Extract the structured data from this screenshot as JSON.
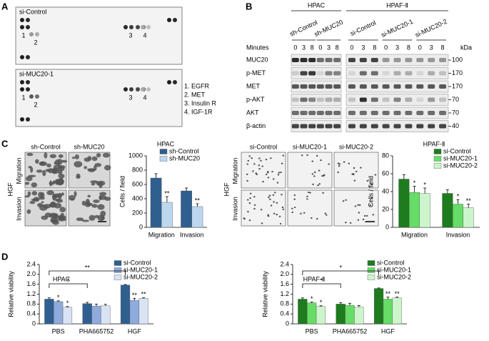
{
  "panel_labels": [
    "A",
    "B",
    "C",
    "D"
  ],
  "array": {
    "blots": [
      {
        "label": "si-Control",
        "spots": [
          {
            "text": "1",
            "color": "#000000"
          },
          {
            "text": "2",
            "color": "#e0201b"
          },
          {
            "text": "3",
            "color": "#000000"
          },
          {
            "text": "4",
            "color": "#000000"
          }
        ]
      },
      {
        "label": "si-MUC20-1",
        "spots": [
          {
            "text": "1",
            "color": "#000000"
          },
          {
            "text": "2",
            "color": "#e0201b"
          },
          {
            "text": "3",
            "color": "#000000"
          },
          {
            "text": "4",
            "color": "#000000"
          }
        ]
      }
    ],
    "legend": [
      {
        "text": "1. EGFR",
        "color": "#000000"
      },
      {
        "text": "2. MET",
        "color": "#e0201b"
      },
      {
        "text": "3. Insulin R",
        "color": "#000000"
      },
      {
        "text": "4. IGF-1R",
        "color": "#000000"
      }
    ]
  },
  "western": {
    "cell_lines": [
      {
        "name": "HPAC",
        "groups": [
          "sh-Control",
          "sh-MUC20"
        ]
      },
      {
        "name": "HPAF-Ⅱ",
        "groups": [
          "si-Control",
          "si-MUC20-1",
          "si-MUC20-2"
        ]
      }
    ],
    "time_label": "Minutes",
    "times": [
      0,
      3,
      8
    ],
    "unit_label": "kDa",
    "rows": [
      {
        "protein": "MUC20",
        "kda": 100
      },
      {
        "protein": "p-MET",
        "kda": 170
      },
      {
        "protein": "MET",
        "kda": 170
      },
      {
        "protein": "p-AKT",
        "kda": 70
      },
      {
        "protein": "AKT",
        "kda": 70
      },
      {
        "protein": "β-actin",
        "kda": 40
      }
    ]
  },
  "microscopy": [
    {
      "treatment": "HGF",
      "groups": [
        "sh-Control",
        "sh-MUC20"
      ],
      "assays": [
        "Migration",
        "Invasion"
      ]
    },
    {
      "treatment": "HGF",
      "groups": [
        "si-Control",
        "si-MUC20-1",
        "si-MUC20-2"
      ],
      "assays": [
        "Migration",
        "Invasion"
      ]
    }
  ],
  "chart_data": [
    {
      "type": "bar",
      "title": "HPAC",
      "ylabel": "Cells / field",
      "categories": [
        "Migration",
        "Invasion"
      ],
      "series": [
        {
          "name": "sh-Control",
          "color": "#2f5f8f",
          "values": [
            690,
            510
          ],
          "errors": [
            60,
            40
          ],
          "significance": [
            null,
            null
          ]
        },
        {
          "name": "sh-MUC20",
          "color": "#bdd7ee",
          "values": [
            350,
            290
          ],
          "errors": [
            80,
            40
          ],
          "significance": [
            "**",
            "**"
          ]
        }
      ],
      "ylim": [
        0,
        1000
      ],
      "yticks": [
        0,
        200,
        400,
        600,
        800,
        1000
      ],
      "brackets": []
    },
    {
      "type": "bar",
      "title": "HPAF-Ⅱ",
      "ylabel": "Cells / field",
      "categories": [
        "Migration",
        "Invasion"
      ],
      "series": [
        {
          "name": "si-Control",
          "color": "#1e7b1e",
          "values": [
            54,
            38
          ],
          "errors": [
            5,
            4
          ],
          "significance": [
            null,
            null
          ]
        },
        {
          "name": "si-MUC20-1",
          "color": "#66dd66",
          "values": [
            39,
            26
          ],
          "errors": [
            7,
            5
          ],
          "significance": [
            "*",
            "*"
          ]
        },
        {
          "name": "si-MUC20-2",
          "color": "#ccf5cc",
          "values": [
            38,
            22
          ],
          "errors": [
            6,
            4
          ],
          "significance": [
            "*",
            "**"
          ]
        }
      ],
      "ylim": [
        0,
        80
      ],
      "yticks": [
        0,
        20,
        40,
        60,
        80
      ],
      "brackets": []
    },
    {
      "type": "bar",
      "title": "HPAC",
      "ylabel": "Relative viability",
      "categories": [
        "PBS",
        "PHA665752",
        "HGF"
      ],
      "series": [
        {
          "name": "si-Control",
          "color": "#2f5f8f",
          "values": [
            1.0,
            0.82,
            1.57
          ],
          "errors": [
            0.05,
            0.05,
            0.02
          ],
          "significance": [
            null,
            null,
            null
          ]
        },
        {
          "name": "si-MUC20-1",
          "color": "#8faadc",
          "values": [
            0.9,
            0.72,
            0.95
          ],
          "errors": [
            0.03,
            0.08,
            0.08
          ],
          "significance": [
            "*",
            null,
            "**"
          ]
        },
        {
          "name": "si-MUC20-2",
          "color": "#dae3f3",
          "values": [
            0.67,
            0.73,
            1.03
          ],
          "errors": [
            0.03,
            0.06,
            0.03
          ],
          "significance": [
            "*",
            null,
            "**"
          ]
        }
      ],
      "ylim": [
        0,
        2.4
      ],
      "yticks": [
        0,
        0.4,
        0.8,
        1.2,
        1.6,
        {
          "value": 2,
          "label": "2.0"
        },
        2.4
      ],
      "brackets": [
        {
          "between": [
            "PBS",
            "PHA665752"
          ],
          "label": "*"
        },
        {
          "between": [
            "PBS",
            "HGF"
          ],
          "label": "**"
        }
      ]
    },
    {
      "type": "bar",
      "title": "HPAF-Ⅱ",
      "ylabel": "Relative viability",
      "categories": [
        "PBS",
        "PHA665752",
        "HGF"
      ],
      "series": [
        {
          "name": "si-Control",
          "color": "#1e7b1e",
          "values": [
            1.0,
            0.8,
            1.43
          ],
          "errors": [
            0.05,
            0.06,
            0.02
          ],
          "significance": [
            null,
            null,
            null
          ]
        },
        {
          "name": "si-MUC20-1",
          "color": "#66dd66",
          "values": [
            0.85,
            0.75,
            1.0
          ],
          "errors": [
            0.03,
            0.08,
            0.08
          ],
          "significance": [
            "*",
            null,
            "**"
          ]
        },
        {
          "name": "si-MUC20-2",
          "color": "#ccf5cc",
          "values": [
            0.7,
            0.68,
            1.05
          ],
          "errors": [
            0.03,
            0.06,
            0.03
          ],
          "significance": [
            "*",
            null,
            "**"
          ]
        }
      ],
      "ylim": [
        0,
        2.4
      ],
      "yticks": [
        0,
        0.4,
        0.8,
        1.2,
        1.6,
        {
          "value": 2,
          "label": "2.0"
        },
        2.4
      ],
      "brackets": [
        {
          "between": [
            "PBS",
            "PHA665752"
          ],
          "label": "*"
        },
        {
          "between": [
            "PBS",
            "HGF"
          ],
          "label": "*"
        }
      ]
    }
  ]
}
